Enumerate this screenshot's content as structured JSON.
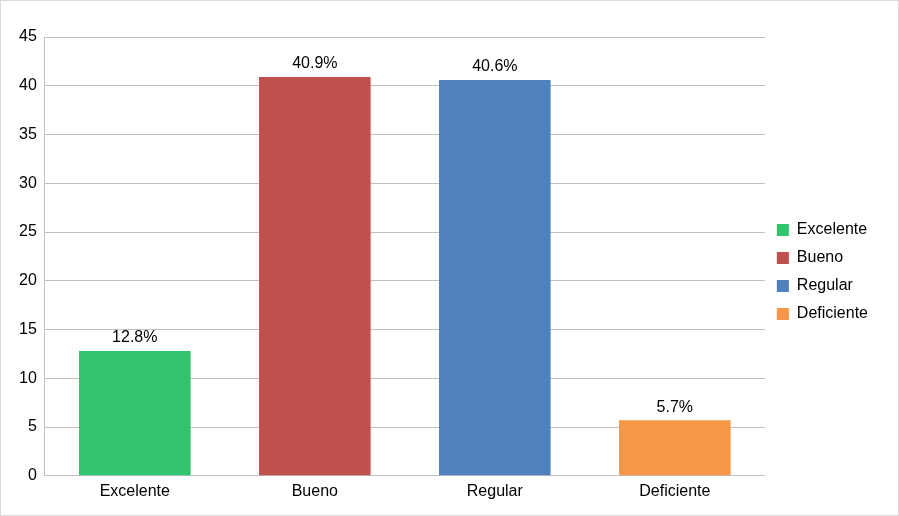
{
  "chart_data": {
    "type": "bar",
    "categories": [
      "Excelente",
      "Bueno",
      "Regular",
      "Deficiente"
    ],
    "values": [
      12.8,
      40.9,
      40.6,
      5.7
    ],
    "value_labels": [
      "12.8%",
      "40.9%",
      "40.6%",
      "5.7%"
    ],
    "colors": [
      "#33c36d",
      "#c0504d",
      "#4f81bd",
      "#f79646"
    ],
    "ylim": [
      0,
      45
    ],
    "yticks": [
      0,
      5,
      10,
      15,
      20,
      25,
      30,
      35,
      40,
      45
    ],
    "grid": true,
    "legend": "right",
    "data_labels": true
  }
}
